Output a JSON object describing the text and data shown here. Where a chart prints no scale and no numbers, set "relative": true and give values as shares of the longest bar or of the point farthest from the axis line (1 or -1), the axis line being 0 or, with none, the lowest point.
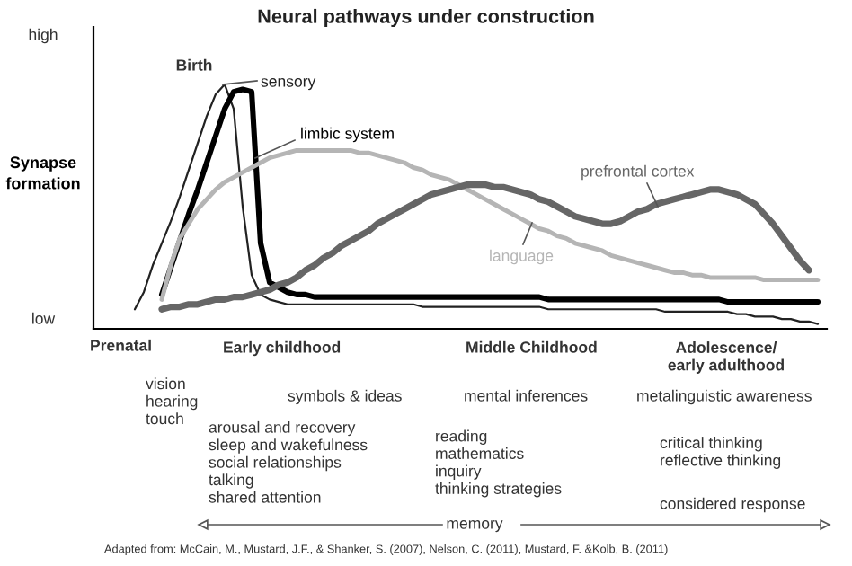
{
  "chart_data": {
    "type": "line",
    "title": "Neural pathways under construction",
    "ylabel": "Synapse\nformation",
    "relative": true,
    "categories": [
      null,
      null,
      null,
      null,
      null,
      null,
      null,
      null,
      null,
      null,
      null,
      null,
      null,
      null,
      null,
      null,
      null,
      null,
      null,
      null,
      null,
      null,
      null,
      null,
      null,
      null,
      null,
      null,
      null,
      null,
      null,
      null,
      null,
      null,
      null,
      null,
      null,
      null,
      null,
      null,
      null,
      null,
      null,
      null,
      null,
      null,
      null,
      null,
      null,
      null,
      null,
      null,
      null,
      null,
      null,
      null,
      null,
      null,
      null,
      null,
      null,
      null,
      null,
      null,
      null,
      null,
      null,
      null,
      null,
      null,
      null,
      null,
      null,
      null,
      null,
      null,
      null
    ],
    "series": [
      {
        "name": "sensory",
        "color": "#222222",
        "values": [
          0.08,
          0.15,
          0.26,
          0.35,
          0.44,
          0.54,
          0.65,
          0.76,
          0.87,
          0.96,
          1.0,
          0.9,
          0.5,
          0.22,
          0.14,
          0.12,
          0.11,
          0.1,
          0.1,
          0.1,
          0.1,
          0.1,
          0.1,
          0.1,
          0.1,
          0.1,
          0.1,
          0.1,
          0.1,
          0.1,
          0.1,
          0.1,
          0.09,
          0.09,
          0.09,
          0.09,
          0.09,
          0.09,
          0.09,
          0.09,
          0.09,
          0.09,
          0.09,
          0.09,
          0.09,
          0.09,
          0.08,
          0.08,
          0.08,
          0.08,
          0.08,
          0.08,
          0.08,
          0.08,
          0.08,
          0.08,
          0.08,
          0.08,
          0.08,
          0.07,
          0.07,
          0.07,
          0.07,
          0.07,
          0.07,
          0.07,
          0.07,
          0.06,
          0.06,
          0.05,
          0.05,
          0.05,
          0.04,
          0.04,
          0.03,
          0.03,
          0.02
        ]
      },
      {
        "name": "limbic system",
        "color": "#000000",
        "values": [
          null,
          null,
          null,
          0.14,
          0.25,
          0.36,
          0.47,
          0.57,
          0.68,
          0.79,
          0.9,
          0.97,
          0.98,
          0.97,
          0.35,
          0.19,
          0.17,
          0.15,
          0.14,
          0.14,
          0.13,
          0.13,
          0.13,
          0.13,
          0.13,
          0.13,
          0.13,
          0.13,
          0.13,
          0.13,
          0.13,
          0.13,
          0.13,
          0.13,
          0.13,
          0.13,
          0.13,
          0.13,
          0.13,
          0.13,
          0.13,
          0.13,
          0.13,
          0.13,
          0.13,
          0.13,
          0.12,
          0.12,
          0.12,
          0.12,
          0.12,
          0.12,
          0.12,
          0.12,
          0.12,
          0.12,
          0.12,
          0.12,
          0.12,
          0.12,
          0.12,
          0.12,
          0.12,
          0.12,
          0.12,
          0.12,
          0.11,
          0.11,
          0.11,
          0.11,
          0.11,
          0.11,
          0.11,
          0.11,
          0.11,
          0.11,
          0.11
        ]
      },
      {
        "name": "language",
        "color": "#b5b5b5",
        "values": [
          null,
          null,
          null,
          0.12,
          0.26,
          0.37,
          0.43,
          0.49,
          0.53,
          0.57,
          0.6,
          0.62,
          0.64,
          0.66,
          0.68,
          0.7,
          0.71,
          0.72,
          0.73,
          0.73,
          0.73,
          0.73,
          0.73,
          0.73,
          0.73,
          0.72,
          0.72,
          0.71,
          0.7,
          0.69,
          0.68,
          0.66,
          0.65,
          0.63,
          0.62,
          0.61,
          0.59,
          0.57,
          0.55,
          0.53,
          0.51,
          0.49,
          0.47,
          0.45,
          0.43,
          0.41,
          0.4,
          0.38,
          0.37,
          0.35,
          0.34,
          0.33,
          0.32,
          0.3,
          0.29,
          0.28,
          0.27,
          0.26,
          0.25,
          0.24,
          0.23,
          0.23,
          0.22,
          0.22,
          0.21,
          0.21,
          0.21,
          0.21,
          0.21,
          0.21,
          0.2,
          0.2,
          0.2,
          0.2,
          0.2,
          0.2,
          0.2
        ]
      },
      {
        "name": "prefrontal cortex",
        "color": "#666666",
        "values": [
          null,
          null,
          null,
          0.08,
          0.09,
          0.09,
          0.1,
          0.1,
          0.11,
          0.12,
          0.12,
          0.13,
          0.13,
          0.14,
          0.15,
          0.16,
          0.18,
          0.19,
          0.21,
          0.24,
          0.26,
          0.29,
          0.31,
          0.34,
          0.36,
          0.38,
          0.4,
          0.43,
          0.45,
          0.47,
          0.49,
          0.51,
          0.53,
          0.55,
          0.56,
          0.57,
          0.58,
          0.59,
          0.59,
          0.59,
          0.58,
          0.58,
          0.57,
          0.56,
          0.55,
          0.53,
          0.52,
          0.5,
          0.48,
          0.46,
          0.45,
          0.44,
          0.43,
          0.43,
          0.44,
          0.46,
          0.48,
          0.49,
          0.51,
          0.52,
          0.53,
          0.54,
          0.55,
          0.56,
          0.57,
          0.57,
          0.56,
          0.55,
          0.53,
          0.51,
          0.47,
          0.43,
          0.38,
          0.33,
          0.28,
          0.24,
          null
        ]
      }
    ],
    "annotations": [
      "Birth",
      "high",
      "low",
      "Prenatal",
      "Early childhood",
      "Middle Childhood",
      "Adolescence/\nearly adulthood",
      "vision\nhearing\ntouch",
      "symbols & ideas",
      "mental inferences",
      "metalinguistic awareness",
      "arousal and recovery\nsleep and wakefulness\nsocial relationships\ntalking\nshared attention",
      "reading\nmathematics\ninquiry\nthinking strategies",
      "critical thinking\nreflective thinking",
      "considered response",
      "memory",
      "Adapted from: McCain, M., Mustard, J.F., & Shanker, S. (2007), Nelson, C. (2011), Mustard, F. &Kolb, B. (2011)"
    ]
  }
}
